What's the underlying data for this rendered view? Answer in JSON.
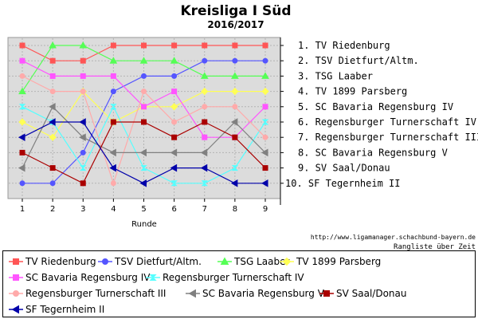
{
  "chart_data": {
    "type": "line",
    "title": "Kreisliga I Süd",
    "subtitle": "2016/2017",
    "xlabel": "Runde",
    "x": [
      1,
      2,
      3,
      4,
      5,
      6,
      7,
      8,
      9
    ],
    "ylim": [
      10,
      1
    ],
    "grid": true,
    "rank_labels": [
      "1. TV Riedenburg",
      "2. TSV Dietfurt/Altm.",
      "3. TSG Laaber",
      "4. TV 1899 Parsberg",
      "5. SC Bavaria Regensburg IV",
      "6. Regensburger Turnerschaft IV",
      "7. Regensburger Turnerschaft III",
      "8. SC Bavaria Regensburg V",
      "9. SV Saal/Donau",
      "10. SF Tegernheim II"
    ],
    "footer_url": "http://www.ligamanager.schachbund-bayern.de",
    "footer_caption": "Rangliste über Zeit",
    "legend_position": "bottom",
    "series": [
      {
        "name": "TV Riedenburg",
        "color": "#ff5555",
        "marker": "square",
        "values": [
          1,
          2,
          2,
          1,
          1,
          1,
          1,
          1,
          1
        ]
      },
      {
        "name": "TSV Dietfurt/Altm.",
        "color": "#5555ff",
        "marker": "circle",
        "values": [
          10,
          10,
          8,
          4,
          3,
          3,
          2,
          2,
          2
        ]
      },
      {
        "name": "TSG Laaber",
        "color": "#55ff55",
        "marker": "triangle-up",
        "values": [
          4,
          1,
          1,
          2,
          2,
          2,
          3,
          3,
          3
        ]
      },
      {
        "name": "TV 1899 Parsberg",
        "color": "#ffff55",
        "marker": "diamond",
        "values": [
          6,
          7,
          4,
          6,
          5,
          5,
          4,
          4,
          4
        ]
      },
      {
        "name": "SC Bavaria Regensburg IV",
        "color": "#ff55ff",
        "marker": "square",
        "values": [
          2,
          3,
          3,
          3,
          5,
          4,
          7,
          7,
          5
        ]
      },
      {
        "name": "Regensburger Turnerschaft IV",
        "color": "#55ffff",
        "marker": "hourglass",
        "values": [
          5,
          6,
          9,
          5,
          9,
          10,
          10,
          9,
          6
        ]
      },
      {
        "name": "Regensburger Turnerschaft III",
        "color": "#ffaaaa",
        "marker": "circle",
        "values": [
          3,
          4,
          4,
          10,
          4,
          6,
          5,
          5,
          7
        ]
      },
      {
        "name": "SC Bavaria Regensburg V",
        "color": "#808080",
        "marker": "triangle-left",
        "values": [
          9,
          5,
          7,
          8,
          8,
          8,
          8,
          6,
          8
        ]
      },
      {
        "name": "SV Saal/Donau",
        "color": "#aa0000",
        "marker": "square",
        "values": [
          8,
          9,
          10,
          6,
          6,
          7,
          6,
          7,
          9
        ]
      },
      {
        "name": "SF Tegernheim II",
        "color": "#0000aa",
        "marker": "triangle-left",
        "values": [
          7,
          6,
          6,
          9,
          10,
          9,
          9,
          10,
          10
        ]
      }
    ]
  }
}
